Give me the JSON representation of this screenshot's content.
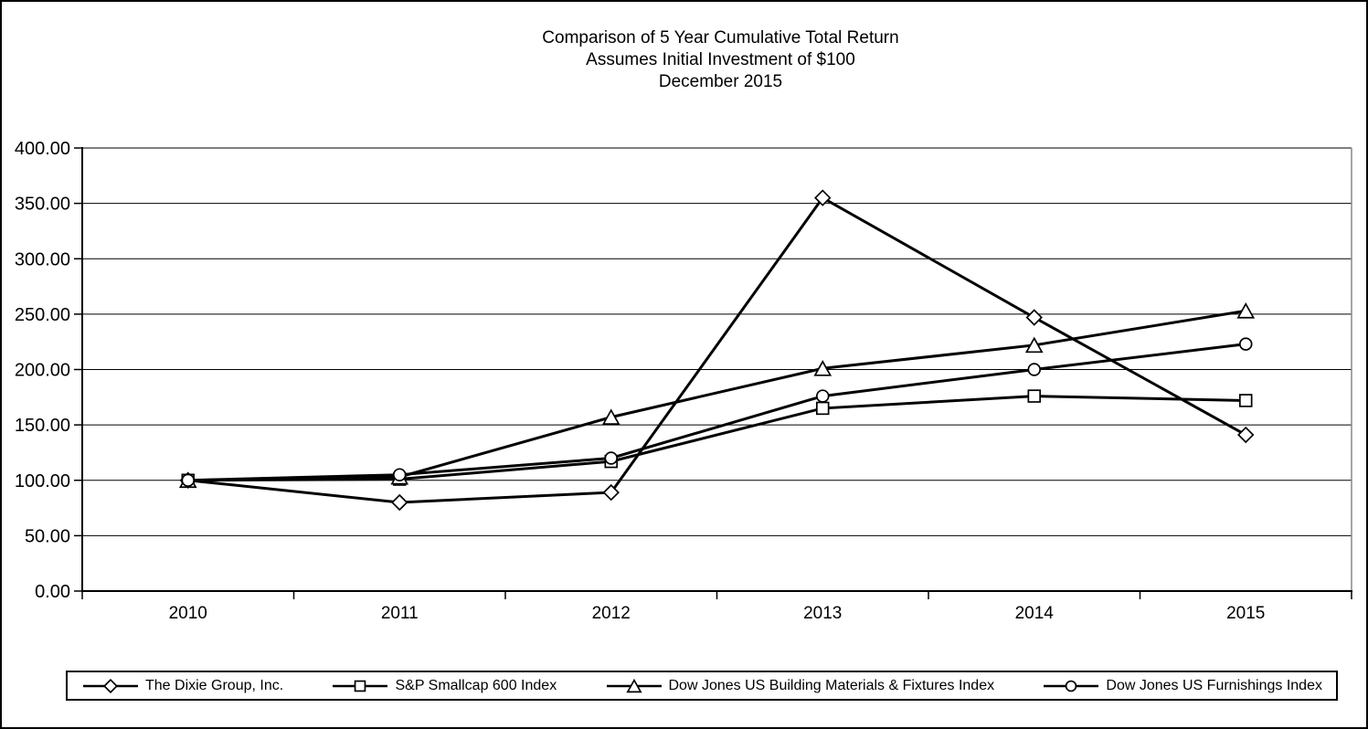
{
  "title": {
    "line1": "Comparison of 5 Year Cumulative Total Return",
    "line2": "Assumes Initial Investment of $100",
    "line3": "December 2015"
  },
  "chart_data": {
    "type": "line",
    "x": [
      "2010",
      "2011",
      "2012",
      "2013",
      "2014",
      "2015"
    ],
    "series": [
      {
        "name": "The Dixie Group, Inc.",
        "marker": "diamond",
        "values": [
          100,
          80,
          89,
          355,
          247,
          141
        ]
      },
      {
        "name": "S&P Smallcap 600 Index",
        "marker": "square",
        "values": [
          100,
          101,
          117,
          165,
          176,
          172
        ]
      },
      {
        "name": "Dow Jones US Building Materials & Fixtures Index",
        "marker": "triangle",
        "values": [
          100,
          103,
          157,
          201,
          222,
          253
        ]
      },
      {
        "name": "Dow Jones US Furnishings Index",
        "marker": "circle",
        "values": [
          100,
          105,
          120,
          176,
          200,
          223
        ]
      }
    ],
    "ylim": [
      0,
      400
    ],
    "y_tick_step": 50,
    "y_tick_labels": [
      "0.00",
      "50.00",
      "100.00",
      "150.00",
      "200.00",
      "250.00",
      "300.00",
      "350.00",
      "400.00"
    ],
    "grid": true,
    "legend_position": "bottom",
    "line_color": "#000000",
    "marker_fill": "#ffffff"
  }
}
